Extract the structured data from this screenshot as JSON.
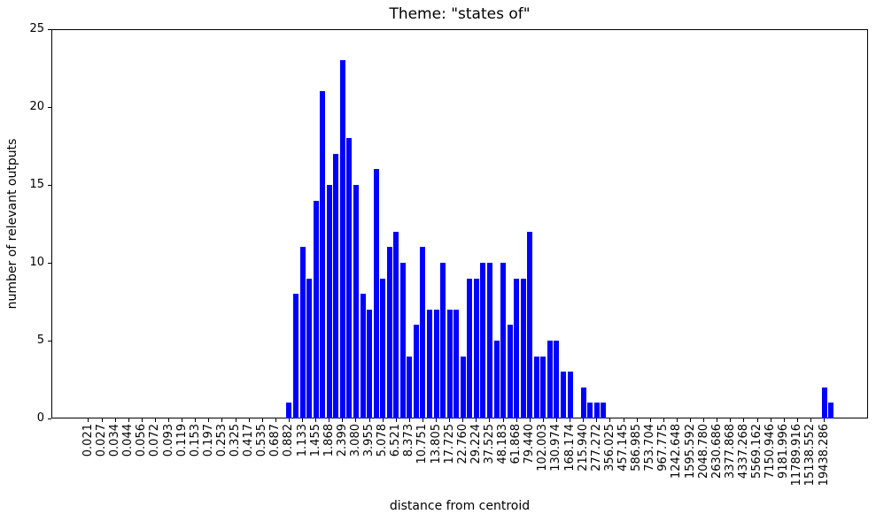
{
  "chart_data": {
    "type": "bar",
    "title": "Theme: \"states of\"",
    "xlabel": "distance from centroid",
    "ylabel": "number of relevant outputs",
    "ylim": [
      0,
      25
    ],
    "yticks": [
      0,
      5,
      10,
      15,
      20,
      25
    ],
    "grid": false,
    "legend": null,
    "bar_color": "#0000ff",
    "axis_color": "#000000",
    "background_color": "#ffffff",
    "num_bins": 112,
    "xtick_bin_step": 2,
    "xtick_labels": [
      "0.021",
      "0.027",
      "0.034",
      "0.044",
      "0.056",
      "0.072",
      "0.093",
      "0.119",
      "0.153",
      "0.197",
      "0.253",
      "0.325",
      "0.417",
      "0.535",
      "0.687",
      "0.882",
      "1.133",
      "1.455",
      "1.868",
      "2.399",
      "3.080",
      "3.955",
      "5.078",
      "6.521",
      "8.373",
      "10.751",
      "13.805",
      "17.725",
      "22.760",
      "29.224",
      "37.525",
      "48.183",
      "61.868",
      "79.440",
      "102.003",
      "130.974",
      "168.174",
      "215.940",
      "277.272",
      "356.025",
      "457.145",
      "586.985",
      "753.704",
      "967.775",
      "1242.648",
      "1595.592",
      "2048.780",
      "2630.686",
      "3377.868",
      "4337.268",
      "5569.162",
      "7150.946",
      "9181.996",
      "11789.916",
      "15138.552",
      "19438.286"
    ],
    "counts": [
      0,
      0,
      0,
      0,
      0,
      0,
      0,
      0,
      0,
      0,
      0,
      0,
      0,
      0,
      0,
      0,
      0,
      0,
      0,
      0,
      0,
      0,
      0,
      0,
      0,
      0,
      0,
      0,
      0,
      0,
      1,
      8,
      11,
      9,
      14,
      21,
      15,
      17,
      23,
      18,
      15,
      8,
      7,
      16,
      9,
      11,
      12,
      10,
      4,
      6,
      11,
      7,
      7,
      10,
      7,
      7,
      4,
      9,
      9,
      10,
      10,
      5,
      10,
      6,
      9,
      9,
      12,
      4,
      4,
      5,
      5,
      3,
      3,
      0,
      2,
      1,
      1,
      1,
      0,
      0,
      0,
      0,
      0,
      0,
      0,
      0,
      0,
      0,
      0,
      0,
      0,
      0,
      0,
      0,
      0,
      0,
      0,
      0,
      0,
      0,
      0,
      0,
      0,
      0,
      0,
      0,
      0,
      0,
      0,
      0,
      2,
      1
    ]
  }
}
